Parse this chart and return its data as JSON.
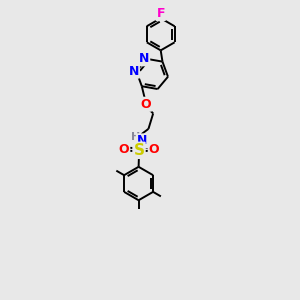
{
  "background_color": "#e8e8e8",
  "bond_color": "#000000",
  "atom_colors": {
    "F": "#ff00cc",
    "N": "#0000ff",
    "O": "#ff0000",
    "S": "#cccc00",
    "H": "#888899",
    "C": "#000000"
  },
  "figsize": [
    3.0,
    3.0
  ],
  "dpi": 100
}
